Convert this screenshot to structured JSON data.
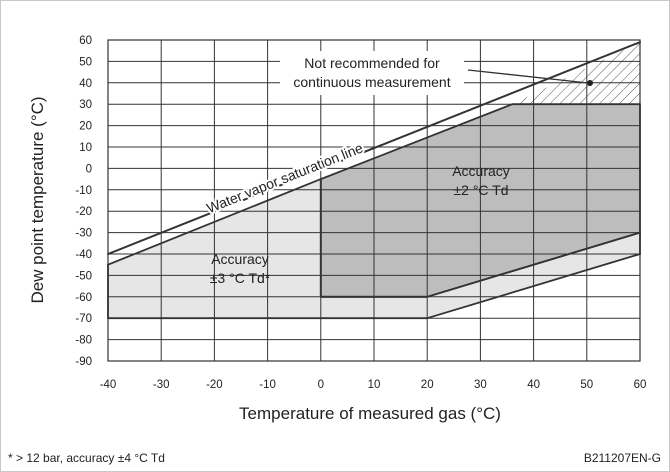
{
  "chart_data": {
    "type": "area",
    "xlabel": "Temperature of measured gas  (°C)",
    "ylabel": "Dew point temperature (°C)",
    "xlim": [
      -40,
      60
    ],
    "ylim": [
      -90,
      60
    ],
    "grid": true,
    "x_ticks": [
      "-40",
      "-30",
      "-20",
      "-10",
      "0",
      "10",
      "20",
      "30",
      "40",
      "50",
      "60"
    ],
    "y_ticks": [
      "60",
      "50",
      "40",
      "30",
      "20",
      "10",
      "0",
      "-10",
      "-20",
      "-30",
      "-40",
      "-50",
      "-60",
      "-70",
      "-80",
      "-90"
    ],
    "regions": [
      {
        "label_lines": [
          "Accuracy",
          "±3 °C Td*"
        ],
        "fill": "#e6e6e6",
        "points": [
          [
            -40,
            -45
          ],
          [
            -40,
            -70
          ],
          [
            20,
            -70
          ],
          [
            60,
            -40
          ],
          [
            60,
            -30
          ],
          [
            20,
            -60
          ],
          [
            0,
            -60
          ],
          [
            0,
            -5
          ]
        ]
      },
      {
        "label_lines": [
          "Accuracy",
          "±2 °C Td"
        ],
        "fill": "#bdbdbd",
        "points": [
          [
            0,
            -5
          ],
          [
            36,
            30
          ],
          [
            60,
            30
          ],
          [
            60,
            -30
          ],
          [
            20,
            -60
          ],
          [
            0,
            -60
          ]
        ]
      },
      {
        "label_lines": [
          "Not recommended for",
          "continuous measurement"
        ],
        "fill": "hatch",
        "points": [
          [
            36,
            30
          ],
          [
            60,
            30
          ],
          [
            60,
            59
          ]
        ]
      }
    ],
    "lines": [
      {
        "label": "Water vapor saturation line",
        "points": [
          [
            -40,
            -40
          ],
          [
            60,
            59
          ]
        ]
      }
    ],
    "annotations": {
      "footnote": "* > 12 bar, accuracy ±4 °C Td",
      "doc_code": "B211207EN-G"
    }
  },
  "colors": {
    "grid": "#333333",
    "outline": "#333333",
    "light_region": "#e6e6e6",
    "dark_region": "#bdbdbd"
  }
}
